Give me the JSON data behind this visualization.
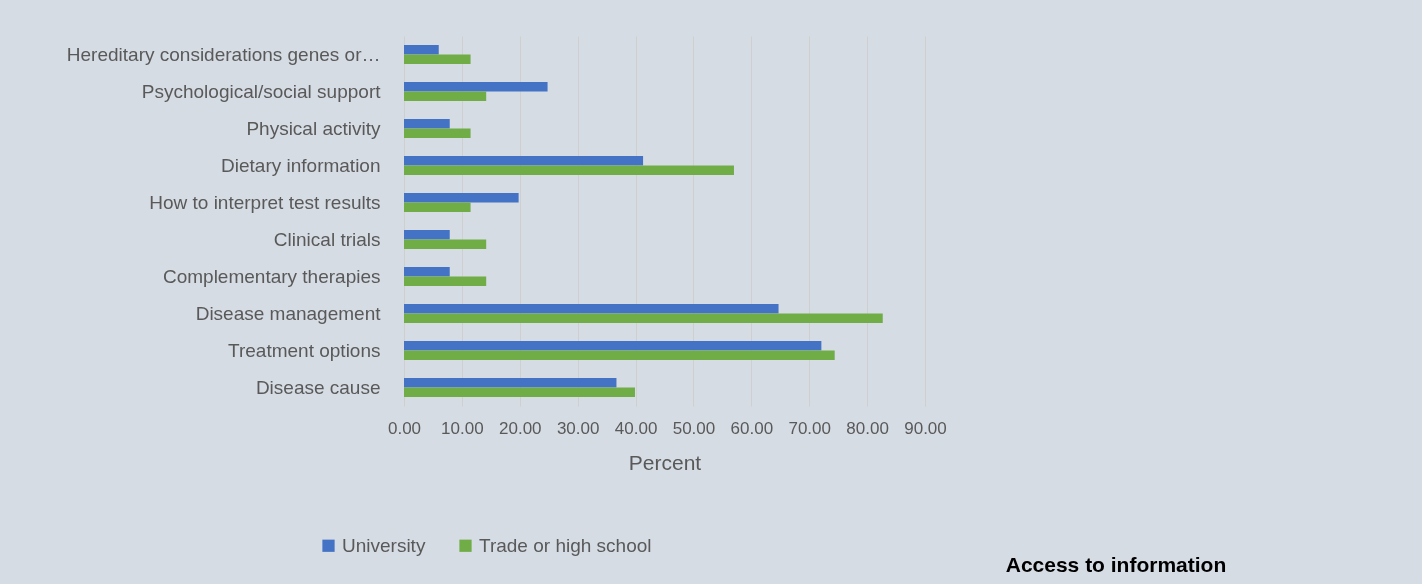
{
  "chart_data": {
    "type": "bar",
    "orientation": "horizontal",
    "title": "Access to information",
    "xlabel": "Percent",
    "categories": [
      "Hereditary considerations genes or…",
      "Psychological/social support",
      "Physical activity",
      "Dietary information",
      "How to interpret test results",
      "Clinical trials",
      "Complementary therapies",
      "Disease management",
      "Treatment options",
      "Disease cause"
    ],
    "series": [
      {
        "name": "University",
        "color": "#4472c4",
        "values": [
          6.0,
          24.8,
          7.9,
          41.3,
          19.8,
          7.9,
          7.9,
          64.7,
          72.1,
          36.7
        ]
      },
      {
        "name": "Trade or high school",
        "color": "#70ad47",
        "values": [
          11.5,
          14.2,
          11.5,
          57.0,
          11.5,
          14.2,
          14.2,
          82.7,
          74.4,
          39.9
        ]
      }
    ],
    "xlim": [
      0,
      90
    ],
    "xticks": [
      {
        "value": 0,
        "label": "0.00"
      },
      {
        "value": 10,
        "label": "10.00"
      },
      {
        "value": 20,
        "label": "20.00"
      },
      {
        "value": 30,
        "label": "30.00"
      },
      {
        "value": 40,
        "label": "40.00"
      },
      {
        "value": 50,
        "label": "50.00"
      },
      {
        "value": 60,
        "label": "60.00"
      },
      {
        "value": 70,
        "label": "70.00"
      },
      {
        "value": 80,
        "label": "80.00"
      },
      {
        "value": 90,
        "label": "90.00"
      }
    ],
    "grid": "x",
    "legend": "bottom"
  }
}
